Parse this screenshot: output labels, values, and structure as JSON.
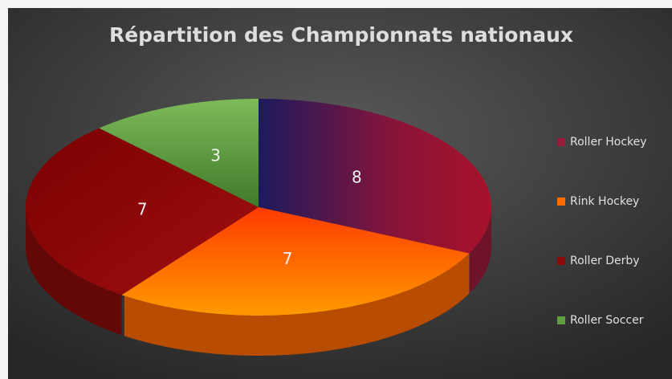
{
  "chart_data": {
    "type": "pie",
    "title": "Répartition des Championnats nationaux",
    "categories": [
      "Roller Hockey",
      "Rink Hockey",
      "Roller Derby",
      "Roller Soccer"
    ],
    "values": [
      8,
      7,
      7,
      3
    ],
    "colors": [
      "#9a1a3c",
      "#ff6a00",
      "#8b0a0a",
      "#5f9e3f"
    ],
    "legend": "right"
  }
}
